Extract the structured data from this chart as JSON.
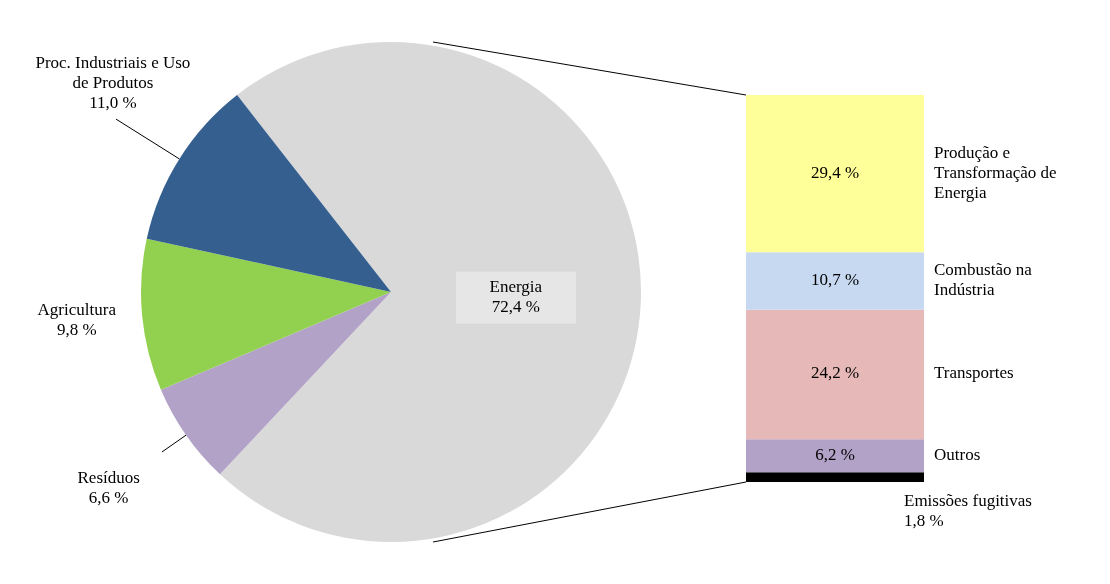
{
  "chart_data": [
    {
      "type": "pie",
      "categories": [
        "Energia",
        "Resíduos",
        "Agricultura",
        "Proc. Industriais e Uso de Produtos"
      ],
      "values": [
        72.4,
        6.6,
        9.8,
        11.0
      ],
      "colors": [
        "#d9d9d9",
        "#b3a2c7",
        "#92d050",
        "#345f8f"
      ],
      "value_labels": [
        "72,4 %",
        "6,6 %",
        "9,8 %",
        "11,0 %"
      ]
    },
    {
      "type": "bar",
      "stacked": true,
      "categories": [
        null
      ],
      "series": [
        {
          "name": "Emissões fugitivas",
          "color": "#000000",
          "values": [
            1.8
          ],
          "value_labels": [
            "1,8 %"
          ]
        },
        {
          "name": "Outros",
          "color": "#b3a2c7",
          "values": [
            6.2
          ],
          "value_labels": [
            "6,2 %"
          ]
        },
        {
          "name": "Transportes",
          "color": "#e6b9b8",
          "values": [
            24.2
          ],
          "value_labels": [
            "24,2 %"
          ]
        },
        {
          "name": "Combustão na Indústria",
          "color": "#c6d9f1",
          "values": [
            10.7
          ],
          "value_labels": [
            "10,7 %"
          ]
        },
        {
          "name": "Produção e Transformação de Energia",
          "color": "#ffff99",
          "values": [
            29.4
          ],
          "value_labels": [
            "29,4 %"
          ]
        }
      ]
    }
  ]
}
